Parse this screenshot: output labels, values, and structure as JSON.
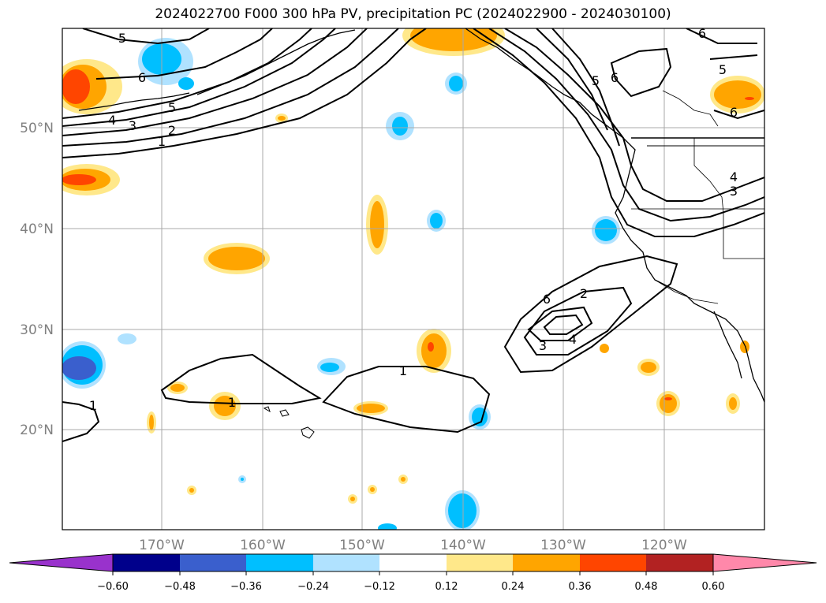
{
  "title": "2024022700 F000 300 hPa PV, precipitation PC (2024022900 - 2024030100)",
  "map": {
    "lat_labels": [
      "50°N",
      "40°N",
      "30°N",
      "20°N"
    ],
    "lon_labels": [
      "170°W",
      "160°W",
      "150°W",
      "140°W",
      "130°W",
      "120°W"
    ],
    "grid_lines": true
  },
  "contour_labels": [
    "5",
    "6",
    "5",
    "4",
    "3",
    "2",
    "1",
    "1",
    "1",
    "1",
    "2",
    "3",
    "4",
    "5",
    "6",
    "4",
    "3",
    "6",
    "5",
    "6"
  ],
  "colorbar": {
    "extend": "both",
    "colors": [
      "#9932cc",
      "#00008b",
      "#3a5fcd",
      "#00bfff",
      "#b0e2ff",
      "#ffffff",
      "#ffe88a",
      "#ffa500",
      "#ff4500",
      "#b22222",
      "#ff88aa"
    ],
    "ticks": [
      "−0.60",
      "−0.48",
      "−0.36",
      "−0.24",
      "−0.12",
      "0.12",
      "0.24",
      "0.36",
      "0.48",
      "0.60"
    ]
  },
  "colors": {
    "positive_light": "#ffe88a",
    "positive_mid": "#ffa500",
    "positive_strong": "#ff4500",
    "negative_light": "#b0e2ff",
    "negative_mid": "#00bfff",
    "negative_strong": "#3a5fcd"
  }
}
